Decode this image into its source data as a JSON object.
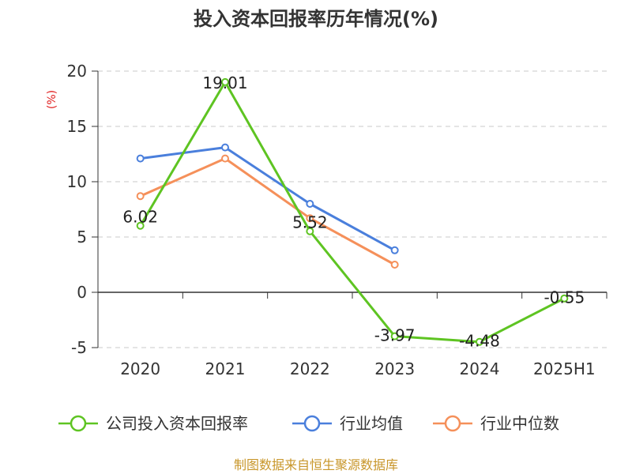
{
  "chart_data": {
    "type": "line",
    "title": "投入资本回报率历年情况(%)",
    "unit_label": "(%)",
    "categories": [
      "2020",
      "2021",
      "2022",
      "2023",
      "2024",
      "2025H1"
    ],
    "ylim": [
      -5,
      20
    ],
    "yticks": [
      "20",
      "15",
      "10",
      "5",
      "0",
      "-5"
    ],
    "grid": true,
    "legend_position": "bottom",
    "series": [
      {
        "name": "公司投入资本回报率",
        "color": "#5ec422",
        "values": [
          6.02,
          19.01,
          5.52,
          -3.97,
          -4.48,
          -0.55
        ],
        "labels": [
          "6.02",
          "19.01",
          "5.52",
          "-3.97",
          "-4.48",
          "-0.55"
        ]
      },
      {
        "name": "行业均值",
        "color": "#4a7fdc",
        "values": [
          12.1,
          13.1,
          8.0,
          3.8,
          null,
          null
        ]
      },
      {
        "name": "行业中位数",
        "color": "#f5905a",
        "values": [
          8.7,
          12.1,
          6.7,
          2.5,
          null,
          null
        ]
      }
    ]
  },
  "source_text": "制图数据来自恒生聚源数据库"
}
